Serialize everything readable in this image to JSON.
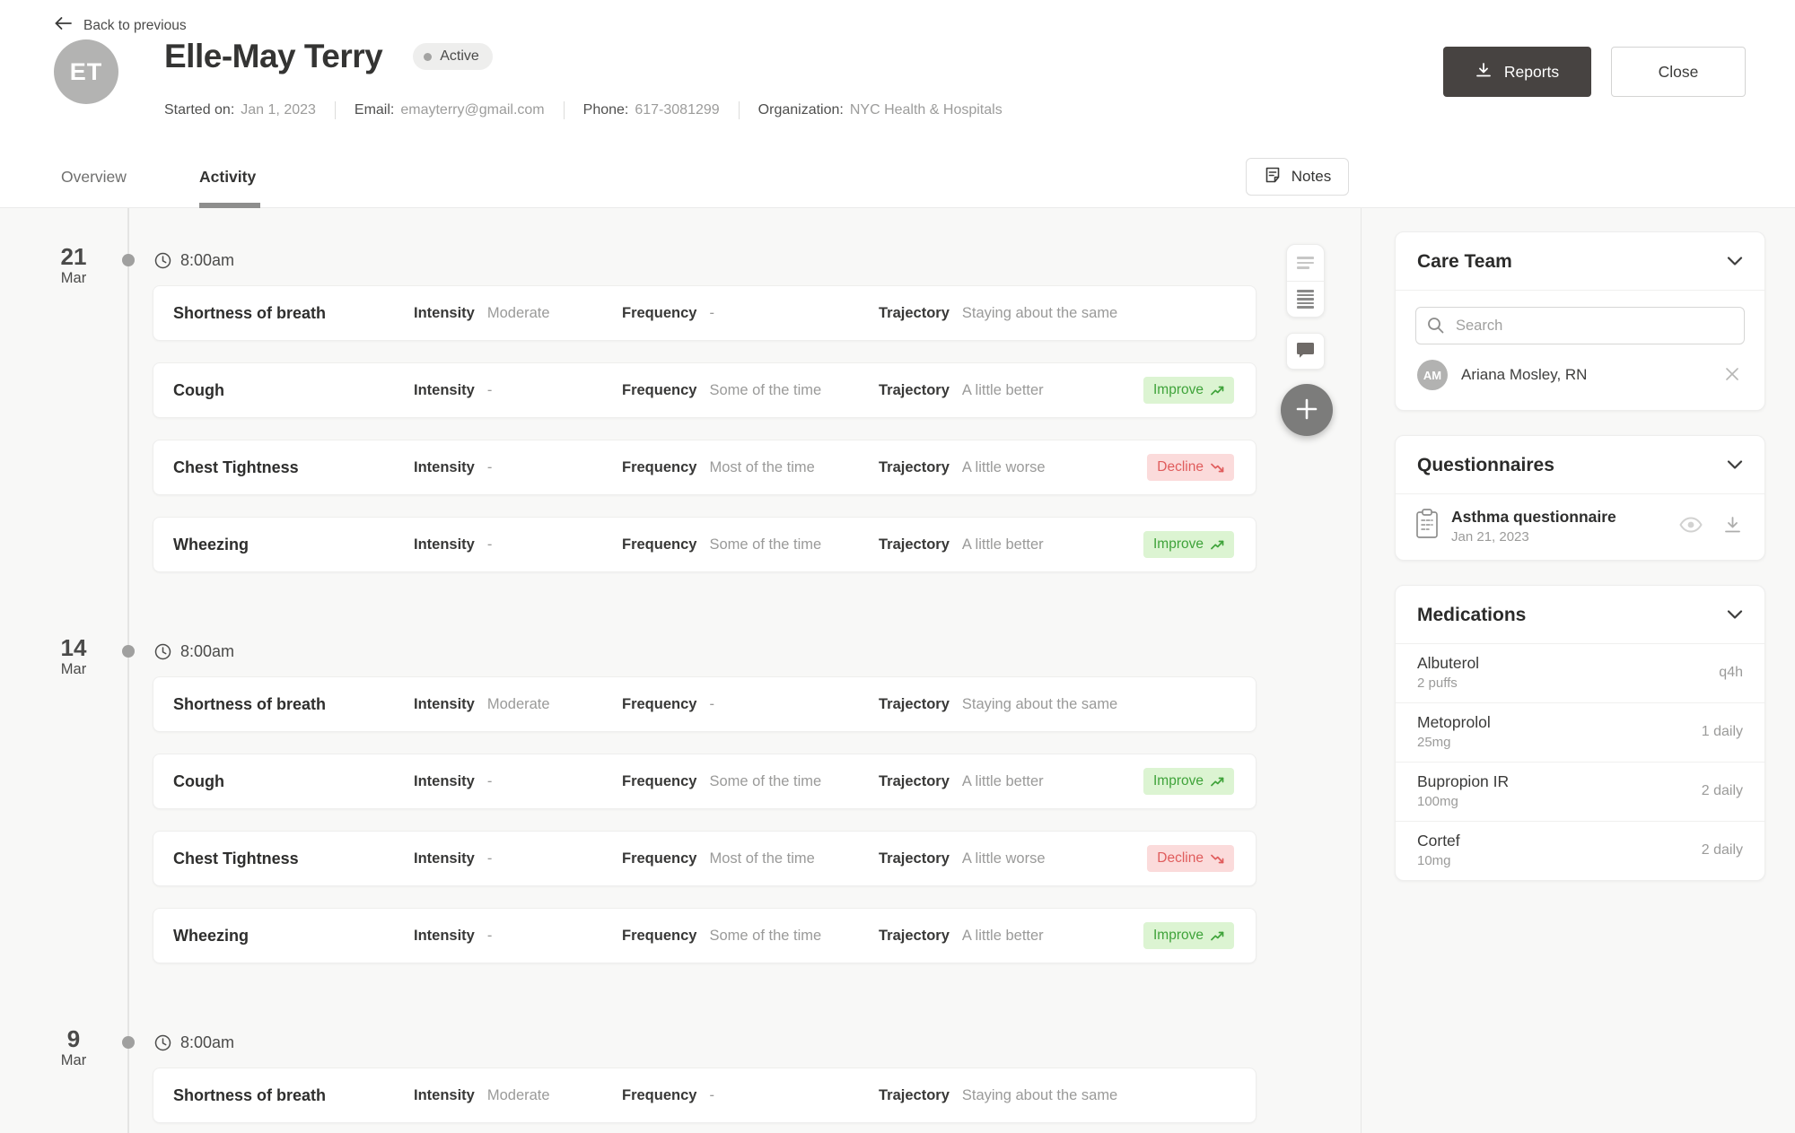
{
  "header": {
    "back_label": "Back to previous",
    "avatar_initials": "ET",
    "patient_name": "Elle-May Terry",
    "status_label": "Active",
    "meta": [
      {
        "label": "Started on:",
        "value": "Jan 1, 2023"
      },
      {
        "label": "Email:",
        "value": "emayterry@gmail.com"
      },
      {
        "label": "Phone:",
        "value": "617-3081299"
      },
      {
        "label": "Organization:",
        "value": "NYC Health & Hospitals"
      }
    ],
    "reports_label": "Reports",
    "close_label": "Close"
  },
  "tabs": {
    "overview_label": "Overview",
    "activity_label": "Activity",
    "notes_label": "Notes"
  },
  "timeline": {
    "field_labels": {
      "intensity": "Intensity",
      "frequency": "Frequency",
      "trajectory": "Trajectory"
    },
    "badges": {
      "improve": "Improve",
      "decline": "Decline"
    },
    "groups": [
      {
        "day": "21",
        "month": "Mar",
        "time": "8:00am",
        "entries": [
          {
            "symptom": "Shortness of breath",
            "intensity": "Moderate",
            "frequency": "-",
            "trajectory": "Staying about the same",
            "badge": null
          },
          {
            "symptom": "Cough",
            "intensity": "-",
            "frequency": "Some of the time",
            "trajectory": "A little better",
            "badge": "improve"
          },
          {
            "symptom": "Chest Tightness",
            "intensity": "-",
            "frequency": "Most of the time",
            "trajectory": "A little worse",
            "badge": "decline"
          },
          {
            "symptom": "Wheezing",
            "intensity": "-",
            "frequency": "Some of the time",
            "trajectory": "A little better",
            "badge": "improve"
          }
        ]
      },
      {
        "day": "14",
        "month": "Mar",
        "time": "8:00am",
        "entries": [
          {
            "symptom": "Shortness of breath",
            "intensity": "Moderate",
            "frequency": "-",
            "trajectory": "Staying about the same",
            "badge": null
          },
          {
            "symptom": "Cough",
            "intensity": "-",
            "frequency": "Some of the time",
            "trajectory": "A little better",
            "badge": "improve"
          },
          {
            "symptom": "Chest Tightness",
            "intensity": "-",
            "frequency": "Most of the time",
            "trajectory": "A little worse",
            "badge": "decline"
          },
          {
            "symptom": "Wheezing",
            "intensity": "-",
            "frequency": "Some of the time",
            "trajectory": "A little better",
            "badge": "improve"
          }
        ]
      },
      {
        "day": "9",
        "month": "Mar",
        "time": "8:00am",
        "entries": [
          {
            "symptom": "Shortness of breath",
            "intensity": "Moderate",
            "frequency": "-",
            "trajectory": "Staying about the same",
            "badge": null
          }
        ]
      }
    ]
  },
  "sidebar": {
    "care_team": {
      "title": "Care Team",
      "search_placeholder": "Search",
      "members": [
        {
          "initials": "AM",
          "name": "Ariana Mosley, RN"
        }
      ]
    },
    "questionnaires": {
      "title": "Questionnaires",
      "items": [
        {
          "name": "Asthma questionnaire",
          "date": "Jan 21, 2023"
        }
      ]
    },
    "medications": {
      "title": "Medications",
      "items": [
        {
          "name": "Albuterol",
          "dose": "2 puffs",
          "frequency": "q4h"
        },
        {
          "name": "Metoprolol",
          "dose": "25mg",
          "frequency": "1 daily"
        },
        {
          "name": "Bupropion IR",
          "dose": "100mg",
          "frequency": "2 daily"
        },
        {
          "name": "Cortef",
          "dose": "10mg",
          "frequency": "2 daily"
        }
      ]
    }
  },
  "colors": {
    "improve_text": "#3fa33a",
    "improve_bg": "#dcf4d2",
    "decline_text": "#e05c5c",
    "decline_bg": "#fbdbdb",
    "primary_button_bg": "#474341",
    "avatar_bg": "#b3b3b2",
    "background": "#f8f8f7"
  }
}
